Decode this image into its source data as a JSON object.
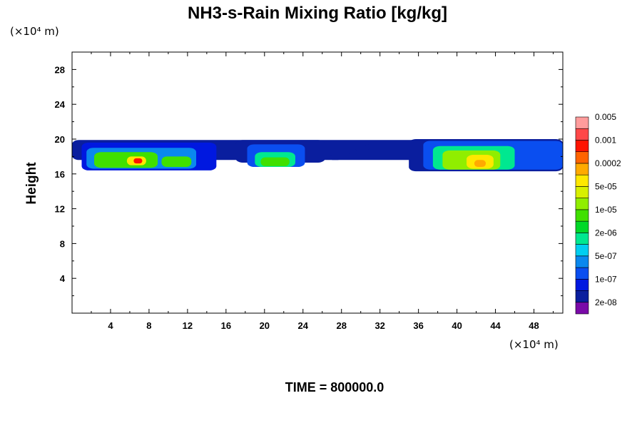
{
  "chart_data": {
    "type": "heatmap",
    "title": "NH3-s-Rain Mixing Ratio [kg/kg]",
    "ylabel": "Height",
    "x_unit": "(×10⁴ m)",
    "y_unit": "(×10⁴ m)",
    "footer": "TIME = 800000.0",
    "xlim": [
      0,
      51
    ],
    "ylim": [
      0,
      30
    ],
    "x_ticks": [
      4,
      8,
      12,
      16,
      20,
      24,
      28,
      32,
      36,
      40,
      44,
      48
    ],
    "y_ticks": [
      4,
      8,
      12,
      16,
      20,
      24,
      28
    ],
    "x_minor_step": 2,
    "y_minor_step": 2,
    "colorbar": {
      "colors": [
        "#7a0aa8",
        "#0a1e9e",
        "#0018e0",
        "#0a4ef0",
        "#0a88ee",
        "#00cef0",
        "#00e890",
        "#00d828",
        "#40e000",
        "#90ee00",
        "#d8f000",
        "#ffe800",
        "#ffaa00",
        "#ff6400",
        "#ff1400",
        "#ff4848",
        "#ff9c9c"
      ],
      "labels": [
        "2e-08",
        "1e-07",
        "5e-07",
        "2e-06",
        "1e-05",
        "5e-05",
        "0.0002",
        "0.001",
        "0.005"
      ]
    },
    "regions": [
      {
        "level": 1,
        "x": [
          0,
          51
        ],
        "y": [
          17.6,
          19.9
        ]
      },
      {
        "level": 2,
        "x": [
          1,
          15
        ],
        "y": [
          16.4,
          19.6
        ]
      },
      {
        "level": 4,
        "x": [
          1.5,
          12.9
        ],
        "y": [
          16.6,
          19.0
        ]
      },
      {
        "level": 8,
        "x": [
          2.3,
          8.9
        ],
        "y": [
          16.7,
          18.5
        ]
      },
      {
        "level": 11,
        "x": [
          5.7,
          7.7
        ],
        "y": [
          17.0,
          18.0
        ]
      },
      {
        "level": 14,
        "x": [
          6.4,
          7.3
        ],
        "y": [
          17.2,
          17.8
        ]
      },
      {
        "level": 8,
        "x": [
          9.3,
          12.4
        ],
        "y": [
          16.8,
          18.0
        ]
      },
      {
        "level": 1,
        "x": [
          17,
          26.3
        ],
        "y": [
          17.3,
          19.9
        ]
      },
      {
        "level": 3,
        "x": [
          18.2,
          24.2
        ],
        "y": [
          16.8,
          19.4
        ]
      },
      {
        "level": 6,
        "x": [
          19,
          23.2
        ],
        "y": [
          16.8,
          18.5
        ]
      },
      {
        "level": 8,
        "x": [
          19.6,
          22.6
        ],
        "y": [
          16.9,
          17.9
        ]
      },
      {
        "level": 1,
        "x": [
          35,
          51
        ],
        "y": [
          16.3,
          20.0
        ]
      },
      {
        "level": 3,
        "x": [
          36.5,
          51
        ],
        "y": [
          16.5,
          19.8
        ]
      },
      {
        "level": 6,
        "x": [
          37.5,
          46
        ],
        "y": [
          16.5,
          19.2
        ]
      },
      {
        "level": 9,
        "x": [
          38.5,
          44.5
        ],
        "y": [
          16.5,
          18.7
        ]
      },
      {
        "level": 11,
        "x": [
          41,
          43.8
        ],
        "y": [
          16.6,
          18.2
        ]
      },
      {
        "level": 12,
        "x": [
          41.8,
          43
        ],
        "y": [
          16.8,
          17.6
        ]
      },
      {
        "level": 1,
        "x": [
          15.2,
          16.6
        ],
        "y": [
          17.7,
          18.3
        ]
      },
      {
        "level": 1,
        "x": [
          26.8,
          27.9
        ],
        "y": [
          17.6,
          18.2
        ]
      },
      {
        "level": 1,
        "x": [
          28.8,
          29.6
        ],
        "y": [
          18.2,
          18.9
        ]
      },
      {
        "level": 1,
        "x": [
          30.4,
          31.0
        ],
        "y": [
          18.8,
          19.4
        ]
      }
    ]
  }
}
